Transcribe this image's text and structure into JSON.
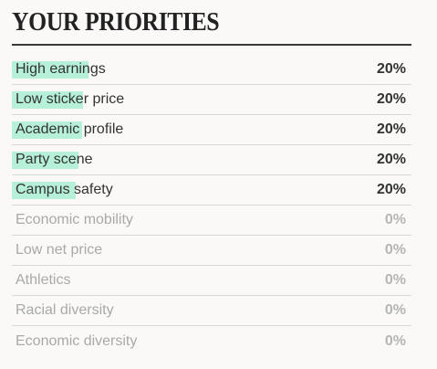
{
  "title": "YOUR PRIORITIES",
  "priorities": [
    {
      "label": "High earnings",
      "value": "20%",
      "active": true,
      "highlight_fraction": 0.78
    },
    {
      "label": "Low sticker price",
      "value": "20%",
      "active": true,
      "highlight_fraction": 0.6
    },
    {
      "label": "Academic profile",
      "value": "20%",
      "active": true,
      "highlight_fraction": 0.6
    },
    {
      "label": "Party scene",
      "value": "20%",
      "active": true,
      "highlight_fraction": 0.78
    },
    {
      "label": "Campus safety",
      "value": "20%",
      "active": true,
      "highlight_fraction": 0.6
    },
    {
      "label": "Economic mobility",
      "value": "0%",
      "active": false
    },
    {
      "label": "Low net price",
      "value": "0%",
      "active": false
    },
    {
      "label": "Athletics",
      "value": "0%",
      "active": false
    },
    {
      "label": "Racial diversity",
      "value": "0%",
      "active": false
    },
    {
      "label": "Economic diversity",
      "value": "0%",
      "active": false
    }
  ],
  "colors": {
    "highlight": "#b6f0d8",
    "active_text": "#333333",
    "inactive_text": "#a9a9a9"
  }
}
